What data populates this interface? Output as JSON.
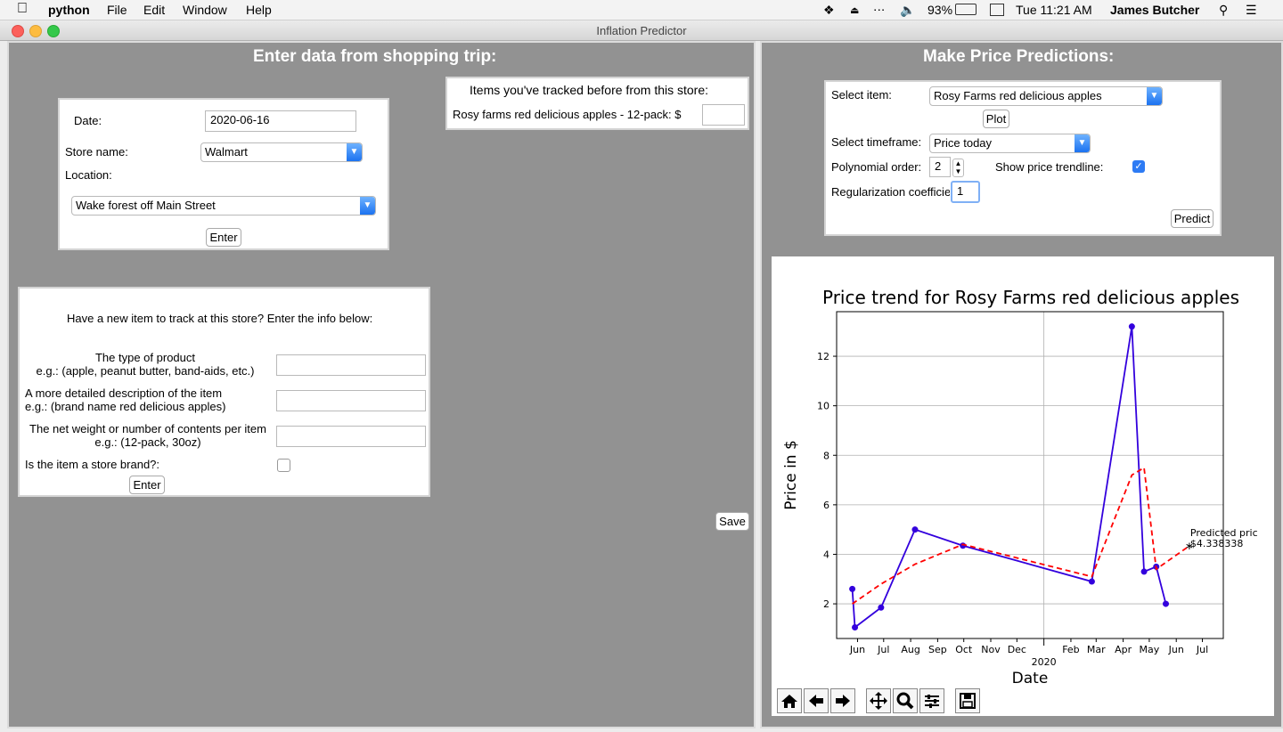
{
  "menubar": {
    "app": "python",
    "items": [
      "File",
      "Edit",
      "Window",
      "Help"
    ],
    "battery": "93%",
    "clock": "Tue 11:21 AM",
    "user": "James Butcher"
  },
  "window": {
    "title": "Inflation Predictor"
  },
  "left": {
    "header": "Enter data from shopping trip:",
    "date_label": "Date:",
    "date_value": "2020-06-16",
    "store_label": "Store name:",
    "store_value": "Walmart",
    "location_label": "Location:",
    "location_value": "Wake forest off Main Street",
    "enter_label": "Enter",
    "tracked_title": "Items you've tracked before from this store:",
    "tracked_item": "Rosy farms red delicious apples  -  12-pack: $",
    "tracked_price": "",
    "new_item_title": "Have a new item to track at this store? Enter the info below:",
    "type_label_1": "The type of product",
    "type_label_2": "e.g.: (apple, peanut butter, band-aids, etc.)",
    "desc_label_1": "A more detailed description of the item",
    "desc_label_2": "e.g.: (brand name red delicious apples)",
    "weight_label_1": "The net weight or number of contents per item",
    "weight_label_2": "e.g.: (12-pack, 30oz)",
    "store_brand_label": "Is the item a store brand?:",
    "enter2_label": "Enter",
    "save_label": "Save"
  },
  "right": {
    "header": "Make Price Predictions:",
    "select_item_label": "Select item:",
    "select_item_value": "Rosy Farms red delicious apples",
    "plot_label": "Plot",
    "timeframe_label": "Select timeframe:",
    "timeframe_value": "Price today",
    "poly_label": "Polynomial order:",
    "poly_value": "2",
    "trendline_label": "Show price trendline:",
    "reg_label": "Regularization coefficie",
    "reg_value": "1",
    "predict_label": "Predict"
  },
  "chart_data": {
    "type": "line",
    "title": "Price trend for Rosy Farms red delicious apples",
    "xlabel": "Date",
    "ylabel": "Price in $",
    "xlim": [
      "2019-05-08",
      "2020-07-25"
    ],
    "ylim": [
      0.6,
      13.8
    ],
    "y_ticks": [
      2,
      4,
      6,
      8,
      10,
      12
    ],
    "x_ticks": [
      {
        "date": "2019-06-01",
        "label": "Jun"
      },
      {
        "date": "2019-07-01",
        "label": "Jul"
      },
      {
        "date": "2019-08-01",
        "label": "Aug"
      },
      {
        "date": "2019-09-01",
        "label": "Sep"
      },
      {
        "date": "2019-10-01",
        "label": "Oct"
      },
      {
        "date": "2019-11-01",
        "label": "Nov"
      },
      {
        "date": "2019-12-01",
        "label": "Dec"
      },
      {
        "date": "2020-01-01",
        "label": "2020"
      },
      {
        "date": "2020-02-01",
        "label": "Feb"
      },
      {
        "date": "2020-03-01",
        "label": "Mar"
      },
      {
        "date": "2020-04-01",
        "label": "Apr"
      },
      {
        "date": "2020-05-01",
        "label": "May"
      },
      {
        "date": "2020-06-01",
        "label": "Jun"
      },
      {
        "date": "2020-07-01",
        "label": "Jul"
      }
    ],
    "grid": true,
    "series": [
      {
        "color": "#3300dd",
        "style": "solid",
        "markers": true,
        "x": [
          "2019-05-26",
          "2019-05-29",
          "2019-06-28",
          "2019-08-06",
          "2019-09-30",
          "2020-02-25",
          "2020-04-11",
          "2020-04-25",
          "2020-05-09",
          "2020-05-20"
        ],
        "y": [
          2.6,
          1.05,
          1.85,
          5.0,
          4.35,
          2.9,
          13.2,
          3.3,
          3.5,
          2.0
        ]
      },
      {
        "color": "#ff0000",
        "style": "dashed",
        "markers": false,
        "x": [
          "2019-05-26",
          "2019-06-28",
          "2019-08-06",
          "2019-09-30",
          "2020-02-25",
          "2020-04-11",
          "2020-04-25",
          "2020-05-09",
          "2020-06-16"
        ],
        "y": [
          2.0,
          2.8,
          3.6,
          4.4,
          3.1,
          7.2,
          7.5,
          3.4,
          4.34
        ]
      }
    ],
    "annotation": {
      "x": "2020-06-16",
      "y": 4.34,
      "text_1": "Predicted pric",
      "text_2": "$4.338338"
    }
  }
}
